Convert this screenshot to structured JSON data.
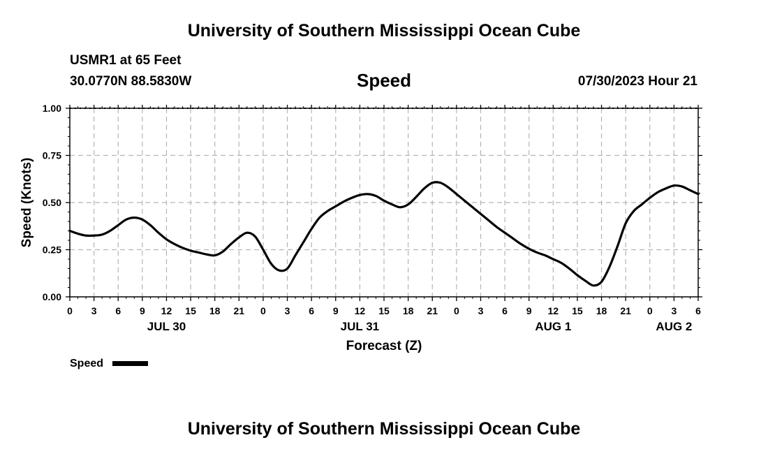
{
  "header": {
    "title": "University of Southern Mississippi Ocean Cube",
    "station": "USMR1 at 65 Feet",
    "coords": "30.0770N  88.5830W",
    "variable": "Speed",
    "datetime": "07/30/2023 Hour 21"
  },
  "footer": {
    "title": "University of Southern Mississippi Ocean Cube"
  },
  "chart_data": {
    "type": "line",
    "title": "Speed",
    "xlabel": "Forecast (Z)",
    "ylabel": "Speed (Knots)",
    "x_unit": "hours",
    "xlim": [
      0,
      78
    ],
    "ylim": [
      0,
      1
    ],
    "y_ticks": [
      0,
      0.25,
      0.5,
      0.75,
      1
    ],
    "y_tick_labels": [
      "0.00",
      "0.25",
      "0.50",
      "0.75",
      "1.00"
    ],
    "x_ticks": [
      0,
      3,
      6,
      9,
      12,
      15,
      18,
      21,
      24,
      27,
      30,
      33,
      36,
      39,
      42,
      45,
      48,
      51,
      54,
      57,
      60,
      63,
      66,
      69,
      72,
      75,
      78
    ],
    "x_tick_labels": [
      "0",
      "3",
      "6",
      "9",
      "12",
      "15",
      "18",
      "21",
      "0",
      "3",
      "6",
      "9",
      "12",
      "15",
      "18",
      "21",
      "0",
      "3",
      "6",
      "9",
      "12",
      "15",
      "18",
      "21",
      "0",
      "3",
      "6"
    ],
    "date_labels": [
      {
        "x": 12,
        "label": "JUL 30"
      },
      {
        "x": 36,
        "label": "JUL 31"
      },
      {
        "x": 60,
        "label": "AUG 1"
      },
      {
        "x": 75,
        "label": "AUG 2"
      }
    ],
    "grid": true,
    "legend": {
      "position": "bottom-left",
      "entries": [
        "Speed"
      ]
    },
    "series": [
      {
        "name": "Speed",
        "color": "#000000",
        "x": [
          0,
          1,
          2,
          3,
          4,
          5,
          6,
          7,
          8,
          9,
          10,
          11,
          12,
          13,
          14,
          15,
          16,
          17,
          18,
          19,
          20,
          21,
          22,
          23,
          24,
          25,
          26,
          27,
          28,
          29,
          30,
          31,
          32,
          33,
          34,
          35,
          36,
          37,
          38,
          39,
          40,
          41,
          42,
          43,
          44,
          45,
          46,
          47,
          48,
          49,
          50,
          51,
          52,
          53,
          54,
          55,
          56,
          57,
          58,
          59,
          60,
          61,
          62,
          63,
          64,
          65,
          66,
          67,
          68,
          69,
          70,
          71,
          72,
          73,
          74,
          75,
          76,
          77,
          78
        ],
        "values": [
          0.35,
          0.335,
          0.325,
          0.325,
          0.33,
          0.35,
          0.38,
          0.41,
          0.42,
          0.41,
          0.38,
          0.34,
          0.305,
          0.28,
          0.26,
          0.245,
          0.235,
          0.225,
          0.22,
          0.24,
          0.28,
          0.315,
          0.34,
          0.32,
          0.25,
          0.175,
          0.14,
          0.15,
          0.22,
          0.29,
          0.36,
          0.42,
          0.455,
          0.48,
          0.505,
          0.525,
          0.54,
          0.545,
          0.535,
          0.51,
          0.49,
          0.475,
          0.49,
          0.53,
          0.575,
          0.605,
          0.605,
          0.58,
          0.545,
          0.51,
          0.475,
          0.44,
          0.405,
          0.37,
          0.34,
          0.31,
          0.28,
          0.255,
          0.235,
          0.22,
          0.2,
          0.18,
          0.15,
          0.115,
          0.085,
          0.06,
          0.08,
          0.16,
          0.27,
          0.39,
          0.455,
          0.49,
          0.525,
          0.555,
          0.575,
          0.59,
          0.585,
          0.565,
          0.545
        ]
      }
    ]
  }
}
